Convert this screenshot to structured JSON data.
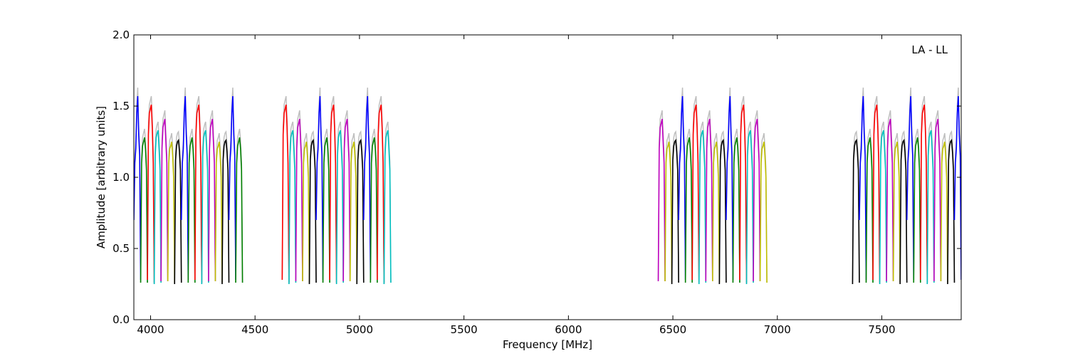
{
  "chart_data": {
    "type": "line",
    "xlabel": "Frequency [MHz]",
    "ylabel": "Amplitude [arbitrary units]",
    "annotation": "LA - LL",
    "xlim": [
      3920,
      7880
    ],
    "ylim": [
      0.0,
      2.0
    ],
    "x_ticks": [
      4000,
      4500,
      5000,
      5500,
      6000,
      6500,
      7000,
      7500
    ],
    "y_ticks": [
      0.0,
      0.5,
      1.0,
      1.5,
      2.0
    ],
    "x_tick_labels": [
      "4000",
      "4500",
      "5000",
      "5500",
      "6000",
      "6500",
      "7000",
      "7500"
    ],
    "y_tick_labels": [
      "0.0",
      "0.5",
      "1.0",
      "1.5",
      "2.0"
    ],
    "grid": false,
    "colors": [
      "#0000ff",
      "#008000",
      "#ff0000",
      "#00bfbf",
      "#bf00bf",
      "#bfbf00",
      "#000000"
    ],
    "background_color": "#bfbfbf",
    "bands": [
      {
        "start": 3920,
        "end": 4440
      },
      {
        "start": 4630,
        "end": 5150
      },
      {
        "start": 6430,
        "end": 6950
      },
      {
        "start": 7360,
        "end": 7880
      }
    ],
    "channels_per_band": 16,
    "series": [
      {
        "color": "#0000ff",
        "values": [
          0.7,
          1.1,
          1.2,
          1.45,
          1.57,
          1.3,
          1.15,
          0.28
        ]
      },
      {
        "color": "#008000",
        "values": [
          0.26,
          1.1,
          1.22,
          1.25,
          1.28,
          1.2,
          1.05,
          0.26
        ]
      },
      {
        "color": "#ff0000",
        "values": [
          0.28,
          1.3,
          1.45,
          1.48,
          1.51,
          1.35,
          1.1,
          0.26
        ]
      },
      {
        "color": "#00bfbf",
        "values": [
          0.25,
          1.15,
          1.28,
          1.31,
          1.33,
          1.2,
          1.05,
          0.26
        ]
      },
      {
        "color": "#bf00bf",
        "values": [
          0.27,
          1.2,
          1.35,
          1.38,
          1.41,
          1.25,
          1.1,
          0.27
        ]
      },
      {
        "color": "#bfbf00",
        "values": [
          0.27,
          1.1,
          1.2,
          1.22,
          1.25,
          1.15,
          1.0,
          0.26
        ]
      },
      {
        "color": "#000000",
        "values": [
          0.25,
          1.12,
          1.22,
          1.25,
          1.26,
          1.18,
          1.05,
          0.26
        ]
      }
    ]
  }
}
